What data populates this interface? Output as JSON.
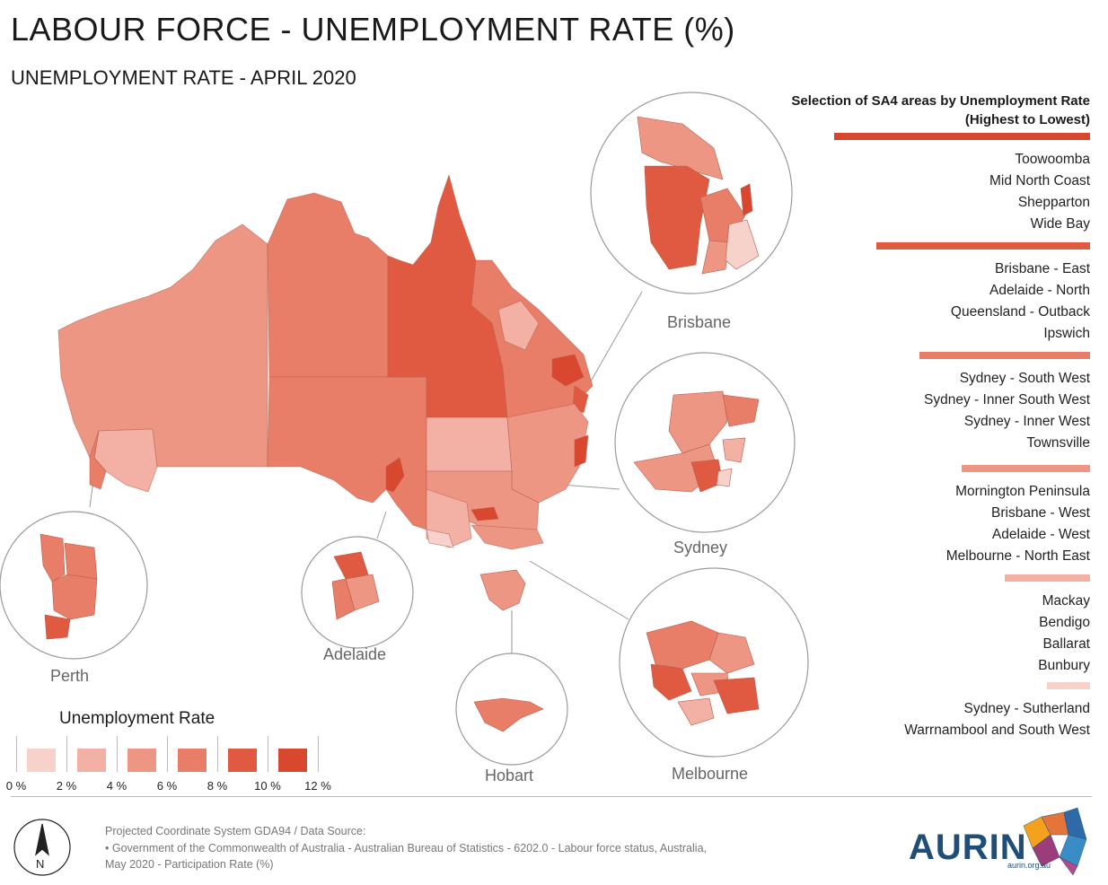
{
  "title": "LABOUR FORCE - UNEMPLOYMENT RATE (%)",
  "subtitle": "UNEMPLOYMENT RATE - APRIL 2020",
  "selection": {
    "title_line1": "Selection of SA4 areas by Unemployment Rate",
    "title_line2": "(Highest to Lowest)",
    "groups": [
      {
        "color": "#d9472f",
        "items": [
          "Toowoomba",
          "Mid North Coast",
          "Shepparton",
          "Wide Bay"
        ]
      },
      {
        "color": "#e05a42",
        "items": [
          "Brisbane - East",
          "Adelaide - North",
          "Queensland - Outback",
          "Ipswich"
        ]
      },
      {
        "color": "#e97e68",
        "items": [
          "Sydney - South West",
          "Sydney - Inner South West",
          "Sydney - Inner West",
          "Townsville"
        ]
      },
      {
        "color": "#ee9684",
        "items": [
          "Mornington Peninsula",
          "Brisbane - West",
          "Adelaide - West",
          "Melbourne - North East"
        ]
      },
      {
        "color": "#f2b1a4",
        "items": [
          "Mackay",
          "Bendigo",
          "Ballarat",
          "Bunbury"
        ]
      },
      {
        "color": "#f7d2ca",
        "items": [
          "Sydney - Sutherland",
          "Warrnambool and South West"
        ]
      }
    ]
  },
  "insets": {
    "brisbane": "Brisbane",
    "sydney": "Sydney",
    "melbourne": "Melbourne",
    "hobart": "Hobart",
    "adelaide": "Adelaide",
    "perth": "Perth"
  },
  "legend": {
    "title": "Unemployment Rate",
    "colors": [
      "#f7d2ca",
      "#f2b1a4",
      "#ee9684",
      "#e97e68",
      "#e05a42",
      "#d9472f"
    ],
    "labels": [
      "0 %",
      "2 %",
      "4 %",
      "6 %",
      "8 %",
      "10 %",
      "12 %"
    ]
  },
  "footer": {
    "line1": "Projected Coordinate System GDA94  /  Data Source:",
    "line2": "• Government of the Commonwealth of Australia - Australian Bureau of Statistics - 6202.0 - Labour force status, Australia,",
    "line3": "May 2020 - Participation Rate (%)"
  },
  "logo": {
    "name": "AURIN",
    "url": "aurin.org.au"
  },
  "north_arrow": "N",
  "icons": [
    "north-arrow-icon",
    "aurin-logo-icon"
  ]
}
